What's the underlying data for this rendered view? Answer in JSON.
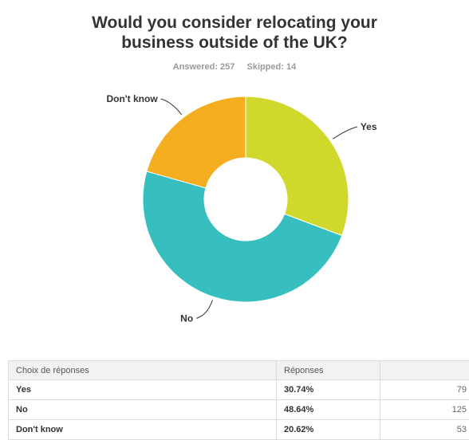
{
  "title_line1": "Would you consider relocating your",
  "title_line2": "business outside of the UK?",
  "answered": "Answered: 257",
  "skipped": "Skipped: 14",
  "chart_data": {
    "type": "pie",
    "title": "Would you consider relocating your business outside of the UK?",
    "style": "donut",
    "categories": [
      "Yes",
      "No",
      "Don't know"
    ],
    "values": [
      30.74,
      48.64,
      20.62
    ],
    "counts": [
      79,
      125,
      53
    ],
    "colors": [
      "#d0d92b",
      "#36bfbe",
      "#f5ae20"
    ]
  },
  "table": {
    "headers": [
      "Choix de réponses",
      "Réponses",
      ""
    ],
    "rows": [
      {
        "choice": "Yes",
        "percent": "30.74%",
        "count": "79"
      },
      {
        "choice": "No",
        "percent": "48.64%",
        "count": "125"
      },
      {
        "choice": "Don't know",
        "percent": "20.62%",
        "count": "53"
      }
    ]
  }
}
